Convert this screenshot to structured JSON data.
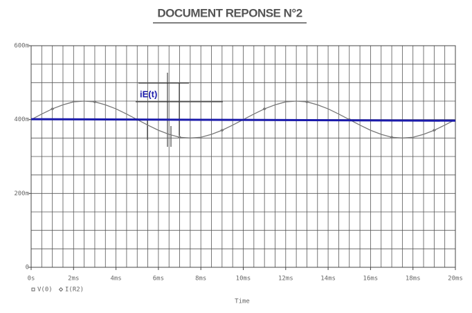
{
  "chart_data": {
    "type": "line",
    "title": "DOCUMENT REPONSE N°2",
    "xlabel": "Time",
    "annotation": "iE(t)",
    "xlim": [
      0,
      20
    ],
    "ylim": [
      0,
      600
    ],
    "xticks": [
      {
        "value": 0,
        "label": "0s"
      },
      {
        "value": 2,
        "label": "2ms"
      },
      {
        "value": 4,
        "label": "4ms"
      },
      {
        "value": 6,
        "label": "6ms"
      },
      {
        "value": 8,
        "label": "8ms"
      },
      {
        "value": 10,
        "label": "10ms"
      },
      {
        "value": 12,
        "label": "12ms"
      },
      {
        "value": 14,
        "label": "14ms"
      },
      {
        "value": 16,
        "label": "16ms"
      },
      {
        "value": 18,
        "label": "18ms"
      },
      {
        "value": 20,
        "label": "20ms"
      }
    ],
    "yticks": [
      0,
      {
        "value": 200,
        "label": "200m"
      },
      {
        "value": 400,
        "label": "400m"
      },
      {
        "value": 600,
        "label": "600m"
      }
    ],
    "grid": true,
    "x_grid_step": 0.5,
    "y_grid_step": 50,
    "legend": [
      {
        "label": "V(0)",
        "marker": "square"
      },
      {
        "label": "I(R2)",
        "marker": "diamond"
      }
    ],
    "series": [
      {
        "name": "I(R2)",
        "color": "#777777",
        "marker": "diamond",
        "x": [
          0,
          0.5,
          1,
          1.5,
          2,
          2.5,
          3,
          3.5,
          4,
          4.5,
          5,
          5.5,
          6,
          6.5,
          7,
          7.5,
          8,
          8.5,
          9,
          9.5,
          10,
          10.5,
          11,
          11.5,
          12,
          12.5,
          13,
          13.5,
          14,
          14.5,
          15,
          15.5,
          16,
          16.5,
          17,
          17.5,
          18,
          18.5,
          19,
          19.5,
          20
        ],
        "values": [
          400,
          415,
          429,
          440,
          448,
          450,
          448,
          440,
          429,
          415,
          400,
          385,
          371,
          360,
          352,
          350,
          352,
          360,
          371,
          385,
          400,
          415,
          429,
          440,
          448,
          450,
          448,
          440,
          429,
          415,
          400,
          385,
          371,
          360,
          352,
          350,
          352,
          360,
          371,
          385,
          400
        ]
      },
      {
        "name": "iE(t)",
        "color": "#1a1aaa",
        "x": [
          0,
          20
        ],
        "values": [
          401,
          397
        ]
      }
    ]
  }
}
